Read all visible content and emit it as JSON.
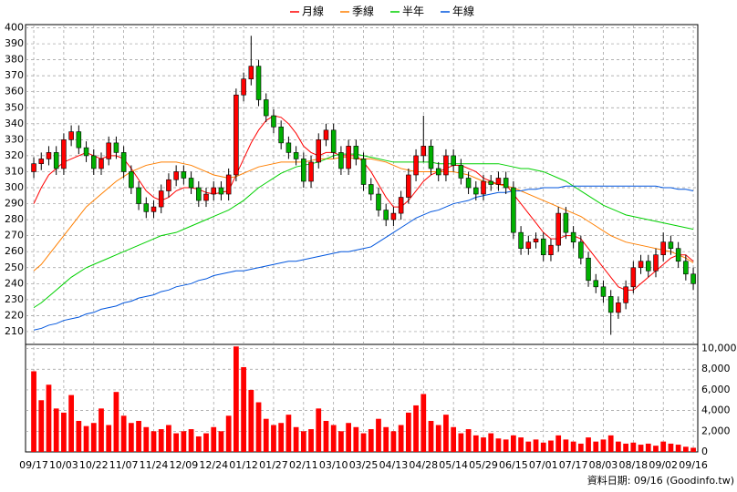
{
  "chart_data": {
    "type": "candlestick",
    "footer": "資料日期: 09/16 (Goodinfo.tw)",
    "up_color": "#ff0000",
    "down_color": "#00b000",
    "grid": true,
    "xlim": [
      -1.1,
      88.6
    ],
    "xticks": [
      {
        "value": 0,
        "label": "09/17"
      },
      {
        "value": 4,
        "label": "10/03"
      },
      {
        "value": 8,
        "label": "10/22"
      },
      {
        "value": 12,
        "label": "11/07"
      },
      {
        "value": 16,
        "label": "11/24"
      },
      {
        "value": 20,
        "label": "12/09"
      },
      {
        "value": 24,
        "label": "12/24"
      },
      {
        "value": 28,
        "label": "01/12"
      },
      {
        "value": 32,
        "label": "01/27"
      },
      {
        "value": 36,
        "label": "02/11"
      },
      {
        "value": 40,
        "label": "03/10"
      },
      {
        "value": 44,
        "label": "03/25"
      },
      {
        "value": 48,
        "label": "04/13"
      },
      {
        "value": 52,
        "label": "04/28"
      },
      {
        "value": 56,
        "label": "05/14"
      },
      {
        "value": 60,
        "label": "05/29"
      },
      {
        "value": 64,
        "label": "06/15"
      },
      {
        "value": 68,
        "label": "07/01"
      },
      {
        "value": 72,
        "label": "07/17"
      },
      {
        "value": 76,
        "label": "08/03"
      },
      {
        "value": 80,
        "label": "08/18"
      },
      {
        "value": 84,
        "label": "09/02"
      },
      {
        "value": 88,
        "label": "09/16"
      }
    ],
    "ylim": [
      202,
      402
    ],
    "yticks": [
      210,
      220,
      230,
      240,
      250,
      260,
      270,
      280,
      290,
      300,
      310,
      320,
      330,
      340,
      350,
      360,
      370,
      380,
      390,
      400
    ],
    "open": [
      310,
      315,
      318,
      322,
      312,
      330,
      335,
      325,
      320,
      312,
      318,
      328,
      322,
      310,
      300,
      290,
      285,
      288,
      298,
      305,
      310,
      306,
      300,
      292,
      296,
      300,
      296,
      308,
      358,
      368,
      376,
      355,
      345,
      338,
      328,
      322,
      318,
      304,
      316,
      330,
      336,
      322,
      312,
      326,
      318,
      302,
      296,
      286,
      280,
      284,
      294,
      308,
      320,
      326,
      312,
      308,
      320,
      314,
      306,
      300,
      296,
      304,
      302,
      306,
      300,
      272,
      262,
      266,
      268,
      258,
      264,
      284,
      272,
      266,
      256,
      242,
      238,
      232,
      222,
      228,
      238,
      250,
      254,
      248,
      258,
      266,
      262,
      254,
      246
    ],
    "high": [
      319,
      322,
      326,
      326,
      334,
      339,
      339,
      329,
      324,
      322,
      332,
      332,
      326,
      314,
      304,
      294,
      292,
      302,
      309,
      314,
      314,
      310,
      304,
      300,
      304,
      304,
      312,
      362,
      372,
      395,
      380,
      359,
      349,
      342,
      332,
      326,
      322,
      320,
      334,
      340,
      340,
      326,
      330,
      330,
      322,
      306,
      300,
      290,
      288,
      298,
      312,
      324,
      345,
      330,
      316,
      324,
      324,
      318,
      310,
      304,
      308,
      308,
      310,
      310,
      304,
      276,
      270,
      272,
      272,
      268,
      288,
      288,
      276,
      270,
      260,
      246,
      242,
      236,
      232,
      242,
      254,
      258,
      258,
      262,
      272,
      270,
      266,
      258,
      250
    ],
    "low": [
      306,
      311,
      314,
      308,
      308,
      326,
      321,
      316,
      308,
      308,
      314,
      318,
      306,
      296,
      286,
      281,
      281,
      284,
      294,
      301,
      302,
      296,
      288,
      288,
      292,
      292,
      292,
      304,
      354,
      364,
      351,
      341,
      334,
      324,
      318,
      314,
      300,
      300,
      312,
      326,
      318,
      308,
      308,
      314,
      298,
      292,
      282,
      276,
      276,
      280,
      290,
      304,
      316,
      308,
      304,
      304,
      310,
      302,
      296,
      292,
      292,
      298,
      298,
      296,
      268,
      258,
      258,
      262,
      254,
      254,
      260,
      268,
      262,
      252,
      238,
      234,
      228,
      208,
      218,
      224,
      234,
      246,
      244,
      244,
      254,
      258,
      250,
      242,
      236
    ],
    "close": [
      315,
      318,
      322,
      312,
      330,
      335,
      325,
      320,
      312,
      318,
      328,
      322,
      310,
      300,
      290,
      285,
      288,
      298,
      305,
      310,
      306,
      300,
      292,
      296,
      300,
      296,
      308,
      358,
      368,
      376,
      355,
      345,
      338,
      328,
      322,
      318,
      304,
      316,
      330,
      336,
      322,
      312,
      326,
      318,
      302,
      296,
      286,
      280,
      284,
      294,
      308,
      320,
      326,
      312,
      308,
      320,
      314,
      306,
      300,
      296,
      304,
      302,
      306,
      300,
      272,
      262,
      266,
      268,
      258,
      264,
      284,
      272,
      266,
      256,
      242,
      238,
      232,
      222,
      228,
      238,
      250,
      254,
      248,
      258,
      266,
      262,
      254,
      246,
      240
    ],
    "series": [
      {
        "name": "月線",
        "color": "#ff0000",
        "values": [
          290,
          300,
          308,
          312,
          316,
          318,
          320,
          322,
          320,
          318,
          320,
          320,
          318,
          312,
          305,
          298,
          294,
          292,
          294,
          298,
          300,
          300,
          299,
          297,
          296,
          297,
          298,
          308,
          318,
          328,
          336,
          342,
          345,
          344,
          340,
          334,
          326,
          322,
          320,
          322,
          322,
          320,
          320,
          320,
          316,
          310,
          302,
          294,
          288,
          288,
          292,
          298,
          304,
          308,
          310,
          312,
          314,
          314,
          312,
          310,
          306,
          304,
          302,
          302,
          296,
          290,
          284,
          278,
          272,
          268,
          268,
          270,
          270,
          268,
          262,
          256,
          250,
          244,
          238,
          236,
          236,
          240,
          244,
          248,
          252,
          256,
          258,
          258,
          254
        ]
      },
      {
        "name": "季線",
        "color": "#ff7f00",
        "values": [
          248,
          252,
          258,
          264,
          270,
          276,
          282,
          288,
          292,
          296,
          300,
          304,
          307,
          310,
          312,
          314,
          315,
          316,
          316,
          316,
          315,
          314,
          312,
          310,
          308,
          307,
          306,
          307,
          309,
          311,
          313,
          314,
          315,
          316,
          316,
          316,
          316,
          317,
          318,
          318,
          318,
          319,
          319,
          318,
          318,
          318,
          317,
          316,
          314,
          312,
          311,
          310,
          310,
          310,
          310,
          310,
          310,
          309,
          308,
          306,
          304,
          303,
          302,
          301,
          300,
          298,
          296,
          294,
          292,
          290,
          288,
          286,
          284,
          282,
          279,
          276,
          273,
          270,
          268,
          266,
          265,
          264,
          263,
          262,
          261,
          260,
          258,
          256,
          253
        ]
      },
      {
        "name": "半年",
        "color": "#00d000",
        "values": [
          225,
          228,
          232,
          236,
          240,
          244,
          247,
          250,
          252,
          254,
          256,
          258,
          260,
          262,
          264,
          266,
          268,
          270,
          271,
          272,
          274,
          276,
          278,
          280,
          282,
          284,
          286,
          289,
          292,
          296,
          300,
          303,
          306,
          309,
          311,
          313,
          314,
          315,
          316,
          318,
          320,
          321,
          321,
          321,
          320,
          319,
          318,
          317,
          316,
          316,
          316,
          316,
          316,
          316,
          315,
          315,
          315,
          315,
          315,
          315,
          315,
          315,
          315,
          314,
          313,
          312,
          312,
          311,
          310,
          308,
          306,
          304,
          301,
          298,
          295,
          292,
          289,
          287,
          285,
          283,
          282,
          281,
          280,
          279,
          278,
          277,
          276,
          275,
          274
        ]
      },
      {
        "name": "年線",
        "color": "#0055dd",
        "values": [
          211,
          212,
          214,
          215,
          217,
          218,
          219,
          221,
          222,
          224,
          225,
          226,
          228,
          229,
          231,
          232,
          233,
          235,
          236,
          238,
          239,
          240,
          242,
          243,
          245,
          246,
          247,
          248,
          248,
          249,
          250,
          251,
          252,
          253,
          254,
          254,
          255,
          256,
          257,
          258,
          259,
          260,
          260,
          261,
          262,
          263,
          266,
          269,
          272,
          275,
          278,
          281,
          283,
          285,
          286,
          288,
          290,
          291,
          292,
          294,
          295,
          296,
          297,
          297,
          298,
          298,
          299,
          299,
          300,
          300,
          300,
          301,
          301,
          301,
          301,
          301,
          301,
          301,
          301,
          301,
          301,
          301,
          301,
          301,
          300,
          300,
          299,
          299,
          298
        ]
      }
    ],
    "volume": {
      "color": "#ff0000",
      "ylim": [
        0,
        10400
      ],
      "yticks": [
        0,
        {
          "value": 2000,
          "label": "2,000"
        },
        {
          "value": 4000,
          "label": "4,000"
        },
        {
          "value": 6000,
          "label": "6,000"
        },
        {
          "value": 8000,
          "label": "8,000"
        },
        {
          "value": 10000,
          "label": "10,000"
        }
      ],
      "values": [
        7800,
        5000,
        6500,
        4200,
        3800,
        5500,
        3000,
        2500,
        2800,
        4200,
        2600,
        5800,
        3500,
        2800,
        3000,
        2400,
        2000,
        2200,
        2600,
        1800,
        2000,
        2200,
        1500,
        1800,
        2400,
        2000,
        3500,
        10200,
        8200,
        6000,
        4800,
        3200,
        2600,
        2800,
        3600,
        2400,
        2000,
        2200,
        4200,
        3000,
        2600,
        2000,
        2800,
        2400,
        1800,
        2200,
        3200,
        2400,
        2000,
        2600,
        3800,
        4500,
        5600,
        3000,
        2600,
        3600,
        2400,
        1800,
        2200,
        1600,
        1400,
        1800,
        1300,
        1200,
        1600,
        1400,
        1000,
        1200,
        900,
        1100,
        1600,
        1200,
        1000,
        800,
        1400,
        1000,
        1200,
        1600,
        1000,
        800,
        900,
        700,
        800,
        600,
        1000,
        800,
        700,
        500,
        400
      ]
    }
  }
}
